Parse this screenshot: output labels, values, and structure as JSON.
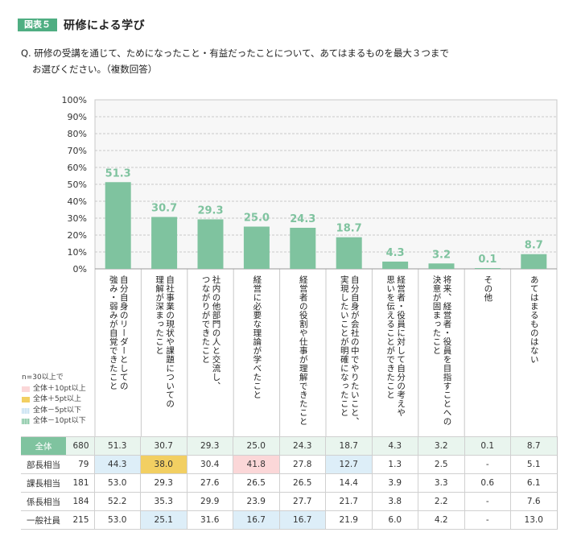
{
  "header": {
    "badge": "図表５",
    "title": "研修による学び"
  },
  "question": {
    "line1": "Q. 研修の受講を通じて、ためになったこと・有益だったことについて、あてはまるものを最大３つまで",
    "line2": "お選びください。（複数回答）"
  },
  "legend": {
    "n_note": "n=30以上で",
    "items": [
      {
        "label": "全体＋10pt以上",
        "color": "#fbd7d8"
      },
      {
        "label": "全体＋5pt以上",
        "color": "#f2cf62"
      },
      {
        "label": "全体－5pt以下",
        "color": "#ddeef8"
      },
      {
        "label": "全体－10pt以下",
        "color": "#7fc39f"
      }
    ]
  },
  "colors": {
    "bar": "#7fc39f",
    "bar_label": "#7fc39f",
    "grid": "#c8c8c8",
    "plot_bg": "#f7f7f7"
  },
  "chart_data": {
    "type": "bar",
    "categories": [
      "自分自身のリーダーとしての\n強み・弱みが自覚できたこと",
      "自社事業の現状や課題についての\n理解が深まったこと",
      "社内の他部門の人と交流し、\nつながりができたこと",
      "経営に必要な理論が学べたこと",
      "経営者の役割や仕事が理解できたこと",
      "自分自身が会社の中でやりたいこと、\n実現したいことが明確になったこと",
      "経営者・役員に対して自分の考えや\n思いを伝えることができたこと",
      "将来、経営者・役員を目指すことへの\n決意が固まったこと",
      "その他",
      "あてはまるものはない"
    ],
    "values": [
      51.3,
      30.7,
      29.3,
      25.0,
      24.3,
      18.7,
      4.3,
      3.2,
      0.1,
      8.7
    ],
    "value_labels": [
      "51.3",
      "30.7",
      "29.3",
      "25.0",
      "24.3",
      "18.7",
      "4.3",
      "3.2",
      "0.1",
      "8.7"
    ],
    "ylim": [
      0,
      100
    ],
    "yticks": [
      "0%",
      "10%",
      "20%",
      "30%",
      "40%",
      "50%",
      "60%",
      "70%",
      "80%",
      "90%",
      "100%"
    ],
    "ytick_values": [
      0,
      10,
      20,
      30,
      40,
      50,
      60,
      70,
      80,
      90,
      100
    ],
    "title": "",
    "xlabel": "",
    "ylabel": ""
  },
  "table": {
    "rows": [
      {
        "label": "全体",
        "n": "680",
        "values": [
          "51.3",
          "30.7",
          "29.3",
          "25.0",
          "24.3",
          "18.7",
          "4.3",
          "3.2",
          "0.1",
          "8.7"
        ],
        "highlights": [
          "",
          "",
          "",
          "",
          "",
          "",
          "",
          "",
          "",
          ""
        ],
        "total": true
      },
      {
        "label": "部長相当",
        "n": "79",
        "values": [
          "44.3",
          "38.0",
          "30.4",
          "41.8",
          "27.8",
          "12.7",
          "1.3",
          "2.5",
          "-",
          "5.1"
        ],
        "highlights": [
          "blue",
          "yellow",
          "",
          "pink",
          "",
          "blue",
          "",
          "",
          "",
          ""
        ]
      },
      {
        "label": "課長相当",
        "n": "181",
        "values": [
          "53.0",
          "29.3",
          "27.6",
          "26.5",
          "26.5",
          "14.4",
          "3.9",
          "3.3",
          "0.6",
          "6.1"
        ],
        "highlights": [
          "",
          "",
          "",
          "",
          "",
          "",
          "",
          "",
          "",
          ""
        ]
      },
      {
        "label": "係長相当",
        "n": "184",
        "values": [
          "52.2",
          "35.3",
          "29.9",
          "23.9",
          "27.7",
          "21.7",
          "3.8",
          "2.2",
          "-",
          "7.6"
        ],
        "highlights": [
          "",
          "",
          "",
          "",
          "",
          "",
          "",
          "",
          "",
          ""
        ]
      },
      {
        "label": "一般社員",
        "n": "215",
        "values": [
          "53.0",
          "25.1",
          "31.6",
          "16.7",
          "16.7",
          "21.9",
          "6.0",
          "4.2",
          "-",
          "13.0"
        ],
        "highlights": [
          "",
          "blue",
          "",
          "blue",
          "blue",
          "",
          "",
          "",
          "",
          ""
        ]
      }
    ]
  }
}
